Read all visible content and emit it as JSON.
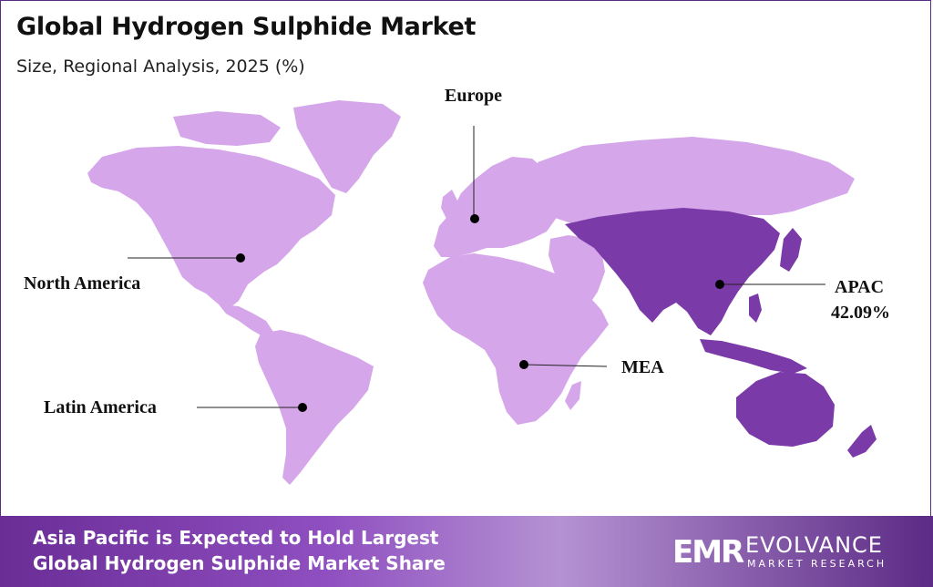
{
  "header": {
    "title": "Global Hydrogen Sulphide Market",
    "subtitle": "Size, Regional Analysis, 2025 (%)"
  },
  "map": {
    "colors": {
      "land": "#d5a6ea",
      "apac": "#7a3aa8",
      "leader": "#222222",
      "dot": "#000000"
    },
    "regions": [
      {
        "id": "north-america",
        "label": "North America",
        "value": ""
      },
      {
        "id": "europe",
        "label": "Europe",
        "value": ""
      },
      {
        "id": "apac",
        "label": "APAC",
        "value": "42.09%"
      },
      {
        "id": "mea",
        "label": "MEA",
        "value": ""
      },
      {
        "id": "latin-america",
        "label": "Latin America",
        "value": ""
      }
    ]
  },
  "banner": {
    "line1": "Asia Pacific is Expected to Hold Largest",
    "line2": "Global Hydrogen Sulphide Market Share",
    "logo_mark": "EMR",
    "logo_name": "EVOLVANCE",
    "logo_sub": "MARKET RESEARCH"
  }
}
